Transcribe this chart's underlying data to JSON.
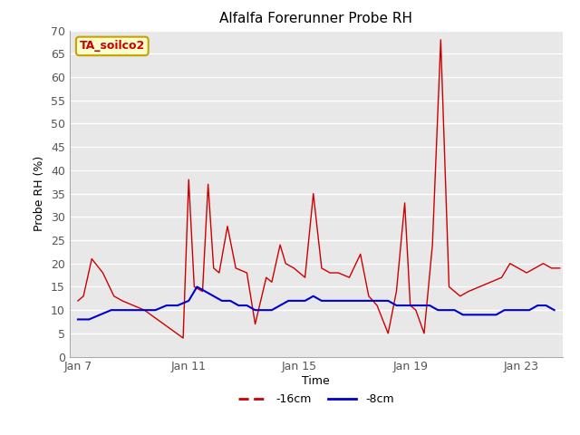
{
  "title": "Alfalfa Forerunner Probe RH",
  "xlabel": "Time",
  "ylabel": "Probe RH (%)",
  "ylim": [
    0,
    70
  ],
  "yticks": [
    0,
    5,
    10,
    15,
    20,
    25,
    30,
    35,
    40,
    45,
    50,
    55,
    60,
    65,
    70
  ],
  "background_color": "#f0f0f0",
  "plot_bg_color": "#e8e8e8",
  "annotation_text": "TA_soilco2",
  "annotation_bg": "#ffffcc",
  "annotation_border": "#c8a000",
  "annotation_color": "#cc0000",
  "legend_labels": [
    "-16cm",
    "-8cm"
  ],
  "legend_colors": [
    "#cc0000",
    "#0000cc"
  ],
  "line16_color": "#cc0000",
  "line8_color": "#0000cc",
  "x_tick_labels": [
    "Jan 7",
    "Jan 11",
    "Jan 15",
    "Jan 19",
    "Jan 23"
  ],
  "x_tick_positions": [
    0,
    4,
    8,
    12,
    16
  ],
  "xlim": [
    -0.3,
    17.5
  ],
  "red_x": [
    0.0,
    0.2,
    0.5,
    0.9,
    1.3,
    1.6,
    2.0,
    2.4,
    3.8,
    4.0,
    4.2,
    4.5,
    4.7,
    4.9,
    5.1,
    5.4,
    5.7,
    6.1,
    6.4,
    6.8,
    7.0,
    7.3,
    7.5,
    7.8,
    8.0,
    8.2,
    8.5,
    8.8,
    9.1,
    9.4,
    9.8,
    10.2,
    10.5,
    10.8,
    11.2,
    11.5,
    11.8,
    12.0,
    12.2,
    12.5,
    12.8,
    13.1,
    13.4,
    13.8,
    14.1,
    14.5,
    14.9,
    15.3,
    15.6,
    15.9,
    16.2,
    16.5,
    16.8,
    17.1,
    17.4
  ],
  "red_y": [
    12,
    13,
    21,
    18,
    13,
    12,
    11,
    10,
    4,
    38,
    15,
    14,
    37,
    19,
    18,
    28,
    19,
    18,
    7,
    17,
    16,
    24,
    20,
    19,
    18,
    17,
    35,
    19,
    18,
    18,
    17,
    22,
    13,
    11,
    5,
    14,
    33,
    11,
    10,
    5,
    24,
    68,
    15,
    13,
    14,
    15,
    16,
    17,
    20,
    19,
    18,
    19,
    20,
    19,
    19
  ],
  "blue_x": [
    0.0,
    0.4,
    0.8,
    1.2,
    1.6,
    2.0,
    2.4,
    2.8,
    3.2,
    3.6,
    4.0,
    4.3,
    4.6,
    4.9,
    5.2,
    5.5,
    5.8,
    6.1,
    6.4,
    6.7,
    7.0,
    7.3,
    7.6,
    7.9,
    8.2,
    8.5,
    8.8,
    9.1,
    9.4,
    9.7,
    10.0,
    10.3,
    10.6,
    10.9,
    11.2,
    11.5,
    11.8,
    12.1,
    12.4,
    12.7,
    13.0,
    13.3,
    13.6,
    13.9,
    14.2,
    14.5,
    14.8,
    15.1,
    15.4,
    15.7,
    16.0,
    16.3,
    16.6,
    16.9,
    17.2
  ],
  "blue_y": [
    8,
    8,
    9,
    10,
    10,
    10,
    10,
    10,
    11,
    11,
    12,
    15,
    14,
    13,
    12,
    12,
    11,
    11,
    10,
    10,
    10,
    11,
    12,
    12,
    12,
    13,
    12,
    12,
    12,
    12,
    12,
    12,
    12,
    12,
    12,
    11,
    11,
    11,
    11,
    11,
    10,
    10,
    10,
    9,
    9,
    9,
    9,
    9,
    10,
    10,
    10,
    10,
    11,
    11,
    10
  ]
}
